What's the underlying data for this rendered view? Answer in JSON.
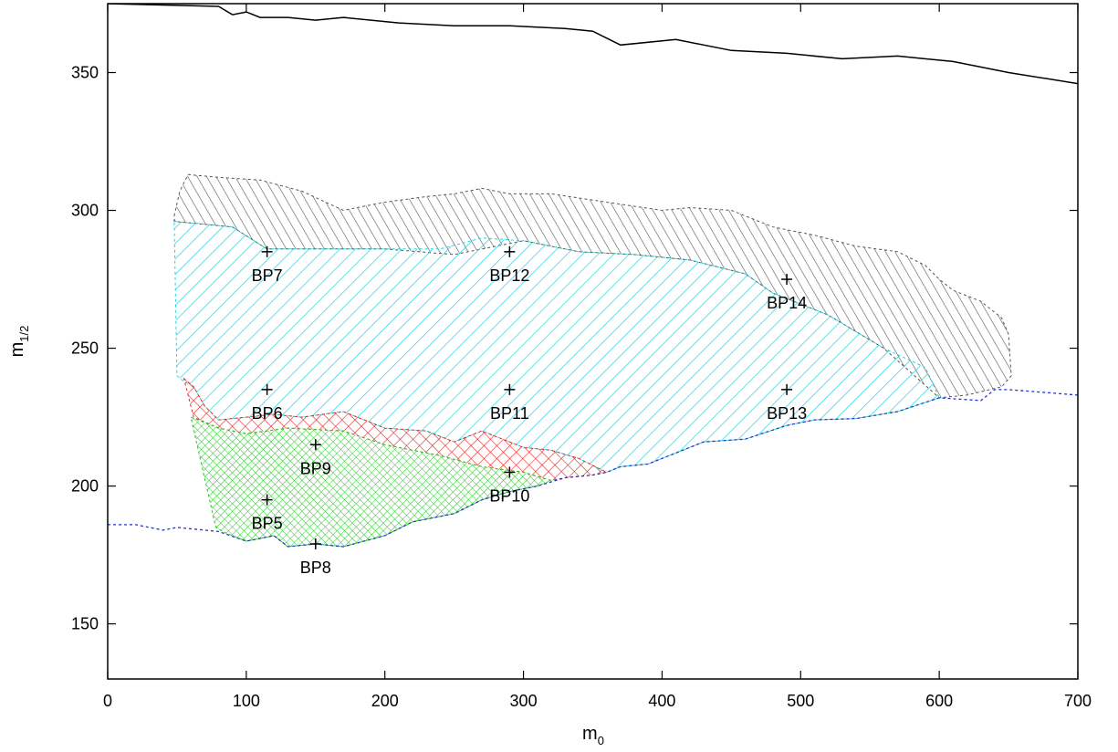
{
  "chart_data": {
    "type": "scatter",
    "title": "",
    "xlabel": {
      "base": "m",
      "sub": "0"
    },
    "ylabel": {
      "base": "m",
      "sub": "1/2"
    },
    "xlim": [
      0,
      700
    ],
    "ylim": [
      130,
      375
    ],
    "xticks": [
      0,
      100,
      200,
      300,
      400,
      500,
      600,
      700
    ],
    "yticks": [
      150,
      200,
      250,
      300,
      350
    ],
    "grid": false,
    "legend": "none",
    "colors": {
      "grey": "#555555",
      "cyan": "#22d3dd",
      "red": "#ee2020",
      "green": "#22cc22",
      "blue": "#2233cc",
      "black": "#000000"
    },
    "points": [
      {
        "label": "BP5",
        "x": 115,
        "y": 195
      },
      {
        "label": "BP6",
        "x": 115,
        "y": 235
      },
      {
        "label": "BP7",
        "x": 115,
        "y": 285
      },
      {
        "label": "BP8",
        "x": 150,
        "y": 179
      },
      {
        "label": "BP9",
        "x": 150,
        "y": 215
      },
      {
        "label": "BP10",
        "x": 290,
        "y": 205
      },
      {
        "label": "BP11",
        "x": 290,
        "y": 235
      },
      {
        "label": "BP12",
        "x": 290,
        "y": 285
      },
      {
        "label": "BP13",
        "x": 490,
        "y": 235
      },
      {
        "label": "BP14",
        "x": 490,
        "y": 275
      }
    ],
    "curves": [
      {
        "style": "solid",
        "color": "black",
        "points": [
          [
            0,
            375
          ],
          [
            40,
            374.5
          ],
          [
            80,
            374
          ],
          [
            90,
            371
          ],
          [
            100,
            372
          ],
          [
            110,
            370
          ],
          [
            130,
            370
          ],
          [
            150,
            369
          ],
          [
            170,
            370
          ],
          [
            210,
            368
          ],
          [
            250,
            367
          ],
          [
            290,
            367
          ],
          [
            330,
            366
          ],
          [
            350,
            365
          ],
          [
            370,
            360
          ],
          [
            410,
            362
          ],
          [
            450,
            358
          ],
          [
            490,
            357
          ],
          [
            530,
            355
          ],
          [
            570,
            356
          ],
          [
            610,
            354
          ],
          [
            650,
            350
          ],
          [
            700,
            346
          ]
        ]
      },
      {
        "style": "dotted",
        "color": "blue",
        "points": [
          [
            0,
            186
          ],
          [
            20,
            186
          ],
          [
            40,
            184
          ],
          [
            50,
            185
          ],
          [
            80,
            183.5
          ],
          [
            100,
            180
          ],
          [
            120,
            182
          ],
          [
            130,
            178
          ],
          [
            150,
            179
          ],
          [
            170,
            178
          ],
          [
            200,
            182
          ],
          [
            220,
            187
          ],
          [
            250,
            190
          ],
          [
            270,
            195
          ],
          [
            290,
            198
          ],
          [
            310,
            200
          ],
          [
            330,
            203
          ],
          [
            350,
            204
          ],
          [
            360,
            205
          ],
          [
            370,
            207
          ],
          [
            390,
            208
          ],
          [
            410,
            212
          ],
          [
            430,
            216
          ],
          [
            460,
            217
          ],
          [
            490,
            222
          ],
          [
            510,
            224
          ],
          [
            540,
            224.5
          ],
          [
            570,
            227
          ],
          [
            600,
            232
          ],
          [
            630,
            231
          ],
          [
            640,
            235
          ],
          [
            650,
            235
          ],
          [
            700,
            233
          ]
        ]
      }
    ],
    "regions": [
      {
        "fill": "grey",
        "hatch": "diagonal",
        "points": [
          [
            48,
            298
          ],
          [
            52,
            307
          ],
          [
            58,
            313
          ],
          [
            80,
            312
          ],
          [
            110,
            311
          ],
          [
            140,
            307
          ],
          [
            170,
            300
          ],
          [
            200,
            303
          ],
          [
            230,
            305
          ],
          [
            250,
            306
          ],
          [
            270,
            308
          ],
          [
            290,
            306
          ],
          [
            320,
            306
          ],
          [
            360,
            303
          ],
          [
            400,
            300
          ],
          [
            420,
            301
          ],
          [
            450,
            300
          ],
          [
            480,
            294
          ],
          [
            510,
            291
          ],
          [
            540,
            287
          ],
          [
            570,
            285
          ],
          [
            590,
            280
          ],
          [
            600,
            275
          ],
          [
            610,
            271
          ],
          [
            630,
            267
          ],
          [
            645,
            261
          ],
          [
            650,
            255
          ],
          [
            652,
            240
          ],
          [
            645,
            236
          ],
          [
            620,
            233
          ],
          [
            600,
            232
          ],
          [
            560,
            250
          ],
          [
            520,
            262
          ],
          [
            480,
            270
          ],
          [
            460,
            277
          ],
          [
            420,
            282
          ],
          [
            380,
            284
          ],
          [
            340,
            285
          ],
          [
            300,
            289
          ],
          [
            250,
            284
          ],
          [
            200,
            286
          ],
          [
            150,
            286
          ],
          [
            115,
            286
          ],
          [
            90,
            294
          ],
          [
            48,
            296
          ]
        ]
      },
      {
        "fill": "cyan",
        "hatch": "diagonal",
        "points": [
          [
            48,
            296
          ],
          [
            70,
            295
          ],
          [
            90,
            294
          ],
          [
            115,
            286
          ],
          [
            150,
            286
          ],
          [
            180,
            286
          ],
          [
            200,
            286
          ],
          [
            240,
            286
          ],
          [
            270,
            290
          ],
          [
            300,
            289
          ],
          [
            340,
            285
          ],
          [
            380,
            284
          ],
          [
            420,
            282
          ],
          [
            460,
            277
          ],
          [
            480,
            270
          ],
          [
            520,
            262
          ],
          [
            560,
            250
          ],
          [
            590,
            243
          ],
          [
            600,
            232
          ],
          [
            570,
            227
          ],
          [
            540,
            224.5
          ],
          [
            510,
            224
          ],
          [
            490,
            222
          ],
          [
            460,
            217
          ],
          [
            430,
            216
          ],
          [
            410,
            212
          ],
          [
            390,
            208
          ],
          [
            370,
            207
          ],
          [
            360,
            205
          ],
          [
            340,
            210
          ],
          [
            320,
            213
          ],
          [
            300,
            214
          ],
          [
            270,
            220
          ],
          [
            250,
            216
          ],
          [
            230,
            220
          ],
          [
            200,
            221
          ],
          [
            170,
            227
          ],
          [
            140,
            225
          ],
          [
            120,
            226
          ],
          [
            100,
            225
          ],
          [
            80,
            224
          ],
          [
            70,
            229
          ],
          [
            62,
            236
          ],
          [
            55,
            238
          ],
          [
            50,
            240
          ]
        ]
      },
      {
        "fill": "red",
        "hatch": "cross",
        "points": [
          [
            55,
            239
          ],
          [
            62,
            236
          ],
          [
            70,
            229
          ],
          [
            80,
            224
          ],
          [
            100,
            225
          ],
          [
            120,
            226
          ],
          [
            140,
            225
          ],
          [
            170,
            227
          ],
          [
            200,
            221
          ],
          [
            230,
            220
          ],
          [
            250,
            216
          ],
          [
            270,
            220
          ],
          [
            300,
            214
          ],
          [
            320,
            213
          ],
          [
            340,
            210
          ],
          [
            360,
            205
          ],
          [
            350,
            204
          ],
          [
            330,
            203
          ],
          [
            320,
            202
          ],
          [
            300,
            205
          ],
          [
            270,
            207
          ],
          [
            240,
            211
          ],
          [
            200,
            215
          ],
          [
            170,
            220
          ],
          [
            130,
            221
          ],
          [
            100,
            219
          ],
          [
            80,
            221
          ],
          [
            62,
            225
          ]
        ]
      },
      {
        "fill": "green",
        "hatch": "cross",
        "points": [
          [
            60,
            225
          ],
          [
            80,
            221
          ],
          [
            100,
            219
          ],
          [
            130,
            221
          ],
          [
            170,
            220
          ],
          [
            200,
            215
          ],
          [
            240,
            211
          ],
          [
            270,
            207
          ],
          [
            300,
            205
          ],
          [
            320,
            202
          ],
          [
            310,
            200
          ],
          [
            290,
            198
          ],
          [
            270,
            195
          ],
          [
            250,
            190
          ],
          [
            220,
            187
          ],
          [
            200,
            182
          ],
          [
            170,
            178
          ],
          [
            150,
            179
          ],
          [
            130,
            178
          ],
          [
            120,
            182
          ],
          [
            100,
            180
          ],
          [
            85,
            183
          ],
          [
            78,
            185
          ]
        ]
      }
    ]
  }
}
